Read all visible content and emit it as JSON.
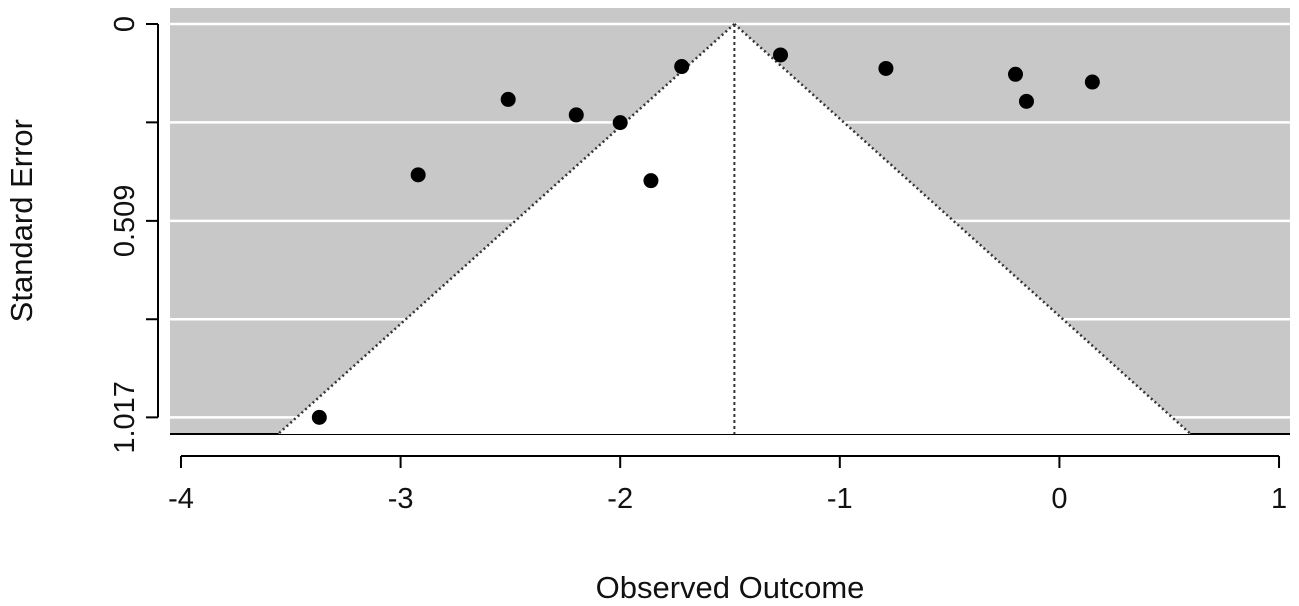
{
  "colors": {
    "panel": "#c8c8c8",
    "funnel": "#ffffff",
    "gridline": "#ffffff",
    "points": "#000000",
    "axis": "#000000"
  },
  "chart_data": {
    "type": "scatter",
    "subtype": "funnel-plot",
    "title": "",
    "xlabel": "Observed Outcome",
    "ylabel": "Standard Error",
    "xlim": [
      -4.05,
      1.05
    ],
    "ylim": [
      0,
      1.06
    ],
    "y_reversed": true,
    "x_ticks": [
      -4,
      -3,
      -2,
      -1,
      0,
      1
    ],
    "x_tick_labels": [
      "-4",
      "-3",
      "-2",
      "-1",
      "0",
      "1"
    ],
    "y_ticks": [
      0,
      0.2543,
      0.509,
      0.7633,
      1.017
    ],
    "y_tick_labels": [
      "0",
      "",
      "0.509",
      "",
      "1.017"
    ],
    "grid": true,
    "summary_estimate": -1.48,
    "funnel_z": 1.96,
    "points": [
      {
        "x": -3.37,
        "y": 1.017
      },
      {
        "x": -2.92,
        "y": 0.39
      },
      {
        "x": -2.51,
        "y": 0.195
      },
      {
        "x": -2.2,
        "y": 0.235
      },
      {
        "x": -2.0,
        "y": 0.255
      },
      {
        "x": -1.86,
        "y": 0.405
      },
      {
        "x": -1.72,
        "y": 0.11
      },
      {
        "x": -1.27,
        "y": 0.08
      },
      {
        "x": -0.79,
        "y": 0.115
      },
      {
        "x": -0.2,
        "y": 0.13
      },
      {
        "x": -0.15,
        "y": 0.2
      },
      {
        "x": 0.15,
        "y": 0.15
      }
    ]
  }
}
